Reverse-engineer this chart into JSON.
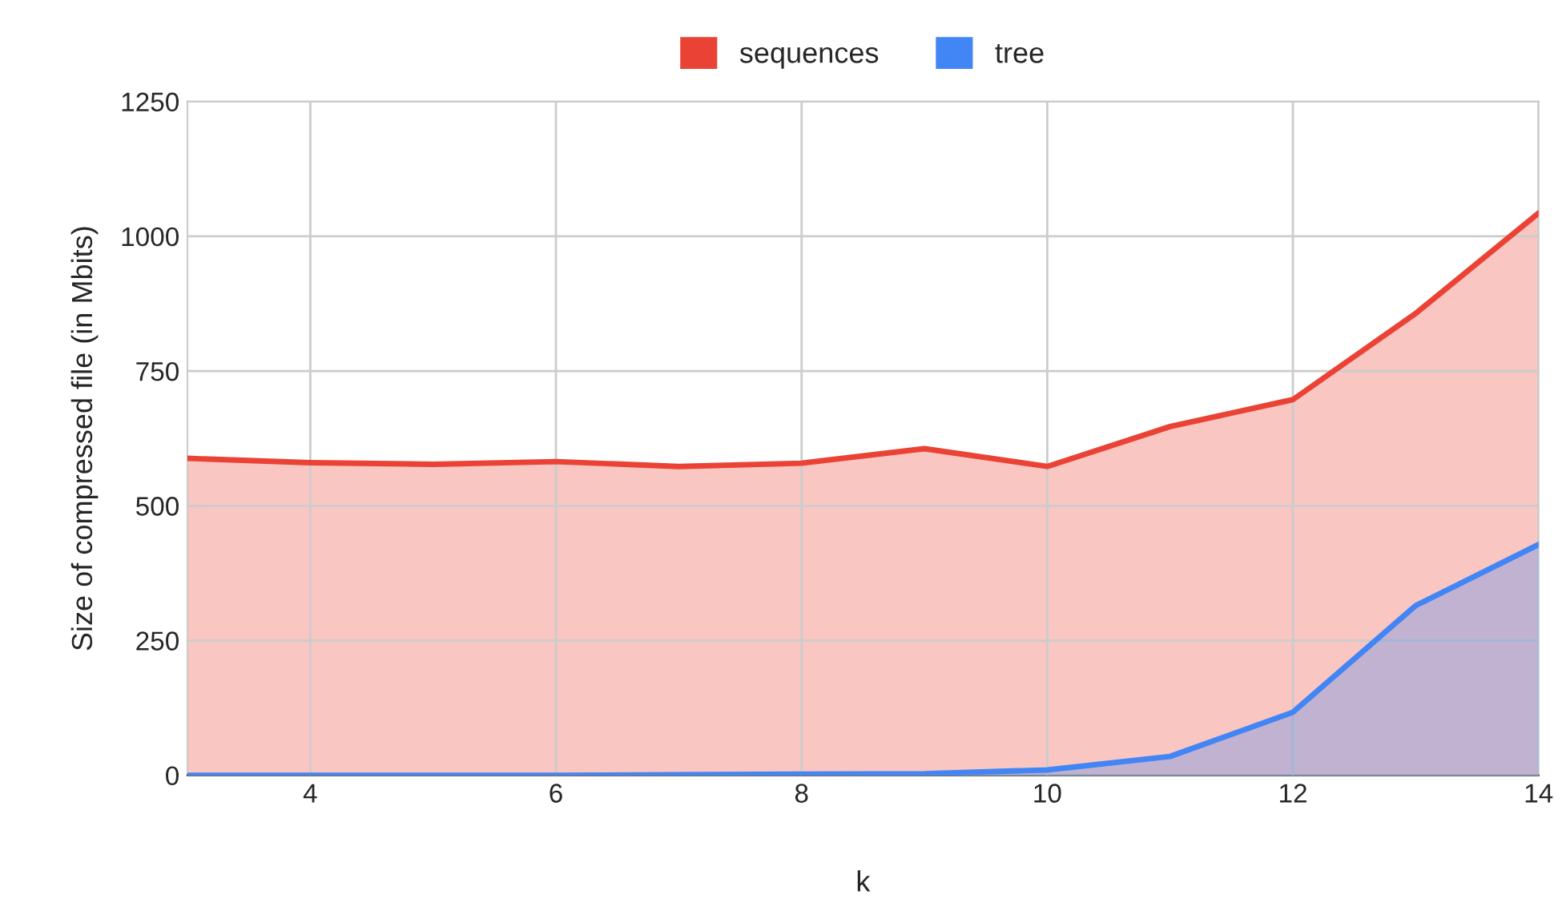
{
  "chart_data": {
    "type": "area",
    "xlabel": "k",
    "ylabel": "Size of compressed file (in Mbits)",
    "x": [
      3,
      4,
      5,
      6,
      7,
      8,
      9,
      10,
      11,
      12,
      13,
      14
    ],
    "series": [
      {
        "name": "sequences",
        "color": "#ea4335",
        "values": [
          588,
          580,
          577,
          582,
          573,
          579,
          606,
          573,
          647,
          697,
          857,
          1043
        ]
      },
      {
        "name": "tree",
        "color": "#4285f4",
        "values": [
          0,
          0,
          0,
          0,
          1,
          2,
          3,
          10,
          35,
          117,
          315,
          428
        ]
      }
    ],
    "xlim": [
      3,
      14
    ],
    "xticks": [
      4,
      6,
      8,
      10,
      12,
      14
    ],
    "ylim": [
      0,
      1250
    ],
    "yticks": [
      0,
      250,
      500,
      750,
      1000,
      1250
    ],
    "grid": true,
    "legend": "top"
  }
}
